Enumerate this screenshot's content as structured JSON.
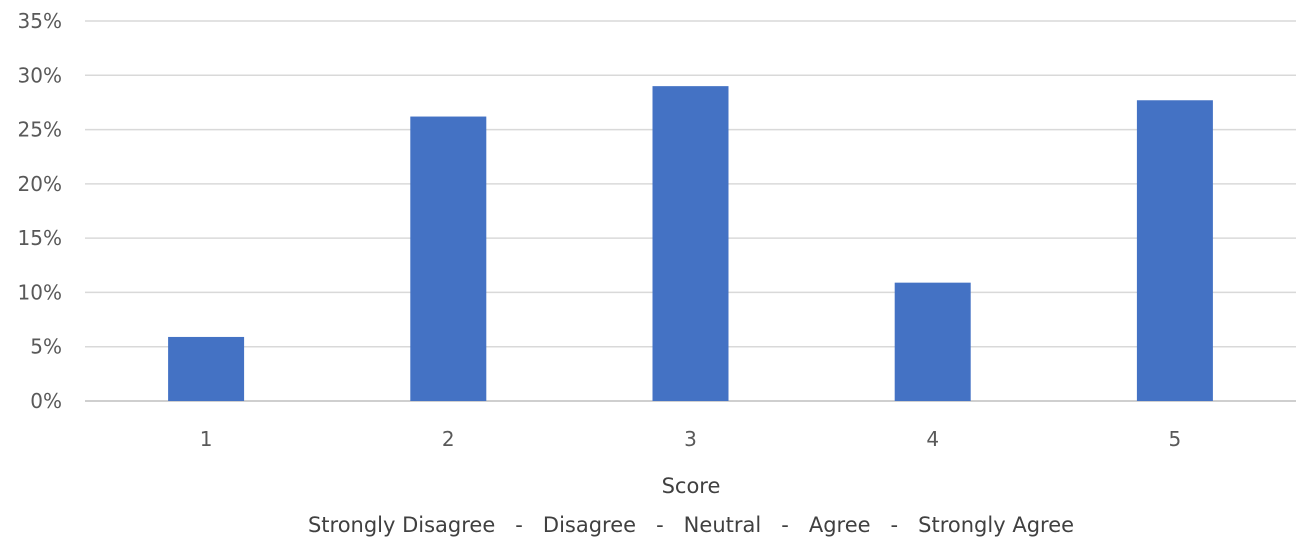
{
  "chart_data": {
    "type": "bar",
    "categories": [
      "1",
      "2",
      "3",
      "4",
      "5"
    ],
    "values": [
      5.9,
      26.2,
      29.0,
      10.9,
      27.7
    ],
    "ylim": [
      0,
      35
    ],
    "ytick_values": [
      0,
      5,
      10,
      15,
      20,
      25,
      30,
      35
    ],
    "ytick_labels": [
      "0%",
      "5%",
      "10%",
      "15%",
      "20%",
      "25%",
      "30%",
      "35%"
    ],
    "xlabel": "Score",
    "xlabel_sub": "Strongly Disagree   -   Disagree   -   Neutral   -   Agree   -   Strongly Agree",
    "grid": true,
    "bar_color": "#4472c4"
  }
}
